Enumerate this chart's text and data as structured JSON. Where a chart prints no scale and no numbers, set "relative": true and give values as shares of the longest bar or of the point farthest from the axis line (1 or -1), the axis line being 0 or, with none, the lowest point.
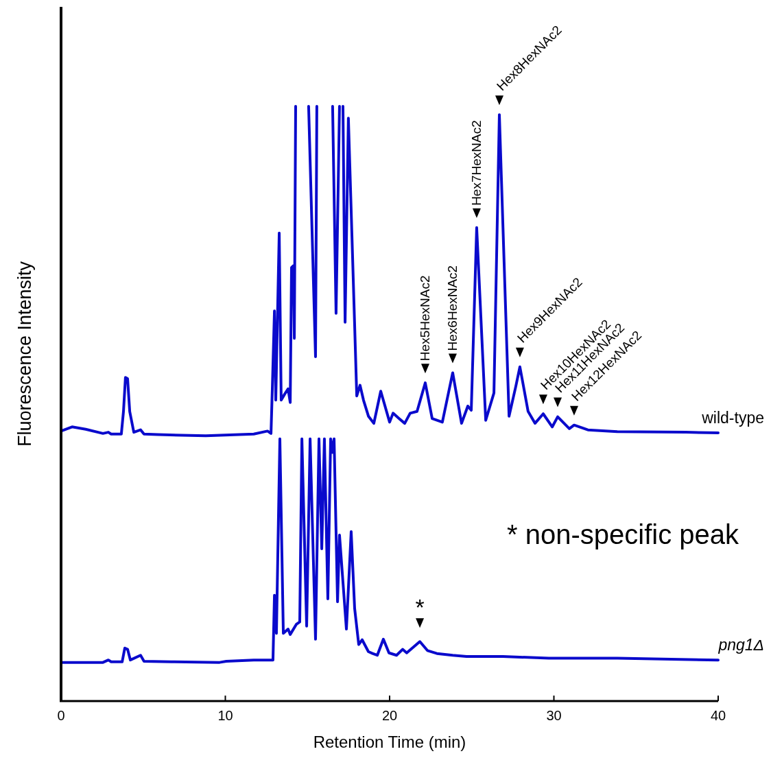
{
  "chart_data": {
    "type": "line",
    "relative": true,
    "xlabel": "Retention Time (min)",
    "ylabel": "Fluorescence Intensity",
    "xlim": [
      0,
      40
    ],
    "xticks": [
      0,
      10,
      20,
      30,
      40
    ],
    "line_style": "solid",
    "series": [
      {
        "name": "wild-type",
        "color": "#0a0acc",
        "x": [
          0,
          0.67,
          1.5,
          2.55,
          2.88,
          3.05,
          3.67,
          3.8,
          3.92,
          4.05,
          4.18,
          4.43,
          4.84,
          5.05,
          5.89,
          8.81,
          11.73,
          12.57,
          12.78,
          12.86,
          12.99,
          13.07,
          13.28,
          13.4,
          13.61,
          13.82,
          13.95,
          14.03,
          14.15,
          14.2,
          14.28,
          14.5,
          15.07,
          15.49,
          15.57,
          16.0,
          16.53,
          16.74,
          16.95,
          17.05,
          17.16,
          17.29,
          17.49,
          17.87,
          18.0,
          18.2,
          18.41,
          18.71,
          19.04,
          19.46,
          20.0,
          20.21,
          20.58,
          20.92,
          21.25,
          21.67,
          22.17,
          22.59,
          23.21,
          23.84,
          24.38,
          24.76,
          24.97,
          25.3,
          25.85,
          26.35,
          26.68,
          27.27,
          27.68,
          27.93,
          28.43,
          28.85,
          29.35,
          29.9,
          30.23,
          30.94,
          31.23,
          32.07,
          33.86,
          38.04,
          40
        ],
        "values": [
          0.454,
          0.461,
          0.457,
          0.45,
          0.452,
          0.449,
          0.449,
          0.487,
          0.544,
          0.542,
          0.487,
          0.452,
          0.456,
          0.449,
          0.448,
          0.446,
          0.449,
          0.454,
          0.45,
          0.525,
          0.656,
          0.506,
          0.787,
          0.506,
          0.516,
          0.525,
          0.502,
          0.729,
          0.732,
          0.61,
          1.0,
          null,
          1.0,
          0.579,
          1.0,
          null,
          1.0,
          0.652,
          1.0,
          null,
          1.0,
          0.637,
          0.98,
          0.633,
          0.513,
          0.531,
          0.506,
          0.479,
          0.467,
          0.521,
          0.469,
          0.484,
          0.475,
          0.467,
          0.484,
          0.487,
          0.535,
          0.475,
          0.469,
          0.552,
          0.467,
          0.496,
          0.489,
          0.796,
          0.472,
          0.518,
          0.986,
          0.479,
          0.529,
          0.562,
          0.487,
          0.467,
          0.483,
          0.461,
          0.478,
          0.458,
          0.464,
          0.456,
          0.453,
          0.452,
          0.451
        ]
      },
      {
        "name": "png1Δ",
        "color": "#0a0acc",
        "x": [
          0,
          2.55,
          2.88,
          3.05,
          3.72,
          3.88,
          4.05,
          4.22,
          4.84,
          5.05,
          6.72,
          9.65,
          10.06,
          11.73,
          12.78,
          12.9,
          12.99,
          13.11,
          13.32,
          13.53,
          13.82,
          13.95,
          14.32,
          14.53,
          14.66,
          14.95,
          15.16,
          15.49,
          15.7,
          15.87,
          16.03,
          16.24,
          16.41,
          16.53,
          16.62,
          16.83,
          16.95,
          17.37,
          17.66,
          17.87,
          18.12,
          18.33,
          18.71,
          18.96,
          19.25,
          19.62,
          19.96,
          20.42,
          20.79,
          21.04,
          21.84,
          22.3,
          22.88,
          23.84,
          24.68,
          26.89,
          29.69,
          33.86,
          40
        ],
        "values": [
          0.065,
          0.065,
          0.069,
          0.066,
          0.066,
          0.089,
          0.087,
          0.069,
          0.077,
          0.067,
          0.066,
          0.065,
          0.067,
          0.069,
          0.069,
          0.069,
          0.178,
          0.114,
          0.441,
          0.114,
          0.121,
          0.112,
          0.129,
          0.133,
          0.441,
          0.126,
          0.441,
          0.104,
          0.441,
          0.256,
          0.441,
          0.172,
          0.441,
          0.418,
          0.441,
          0.167,
          0.279,
          0.121,
          0.285,
          0.156,
          0.095,
          0.103,
          0.083,
          0.08,
          0.077,
          0.104,
          0.081,
          0.077,
          0.087,
          0.081,
          0.1,
          0.085,
          0.08,
          0.077,
          0.075,
          0.075,
          0.072,
          0.072,
          0.069
        ]
      }
    ],
    "annotations": [
      {
        "text": "Hex5HexNAc2",
        "x": 22.17,
        "y": 0.535
      },
      {
        "text": "Hex6HexNAc2",
        "x": 23.84,
        "y": 0.552
      },
      {
        "text": "Hex7HexNAc2",
        "x": 25.3,
        "y": 0.796
      },
      {
        "text": "Hex8HexNAc2",
        "x": 26.68,
        "y": 0.986
      },
      {
        "text": "Hex9HexNAc2",
        "x": 27.93,
        "y": 0.562
      },
      {
        "text": "Hex10HexNAc2",
        "x": 29.35,
        "y": 0.483
      },
      {
        "text": "Hex11HexNAc2",
        "x": 30.23,
        "y": 0.478
      },
      {
        "text": "Hex12HexNAc2",
        "x": 31.23,
        "y": 0.464
      },
      {
        "text": "*",
        "x": 21.84,
        "y": 0.1
      },
      "* non-specific peak"
    ]
  }
}
